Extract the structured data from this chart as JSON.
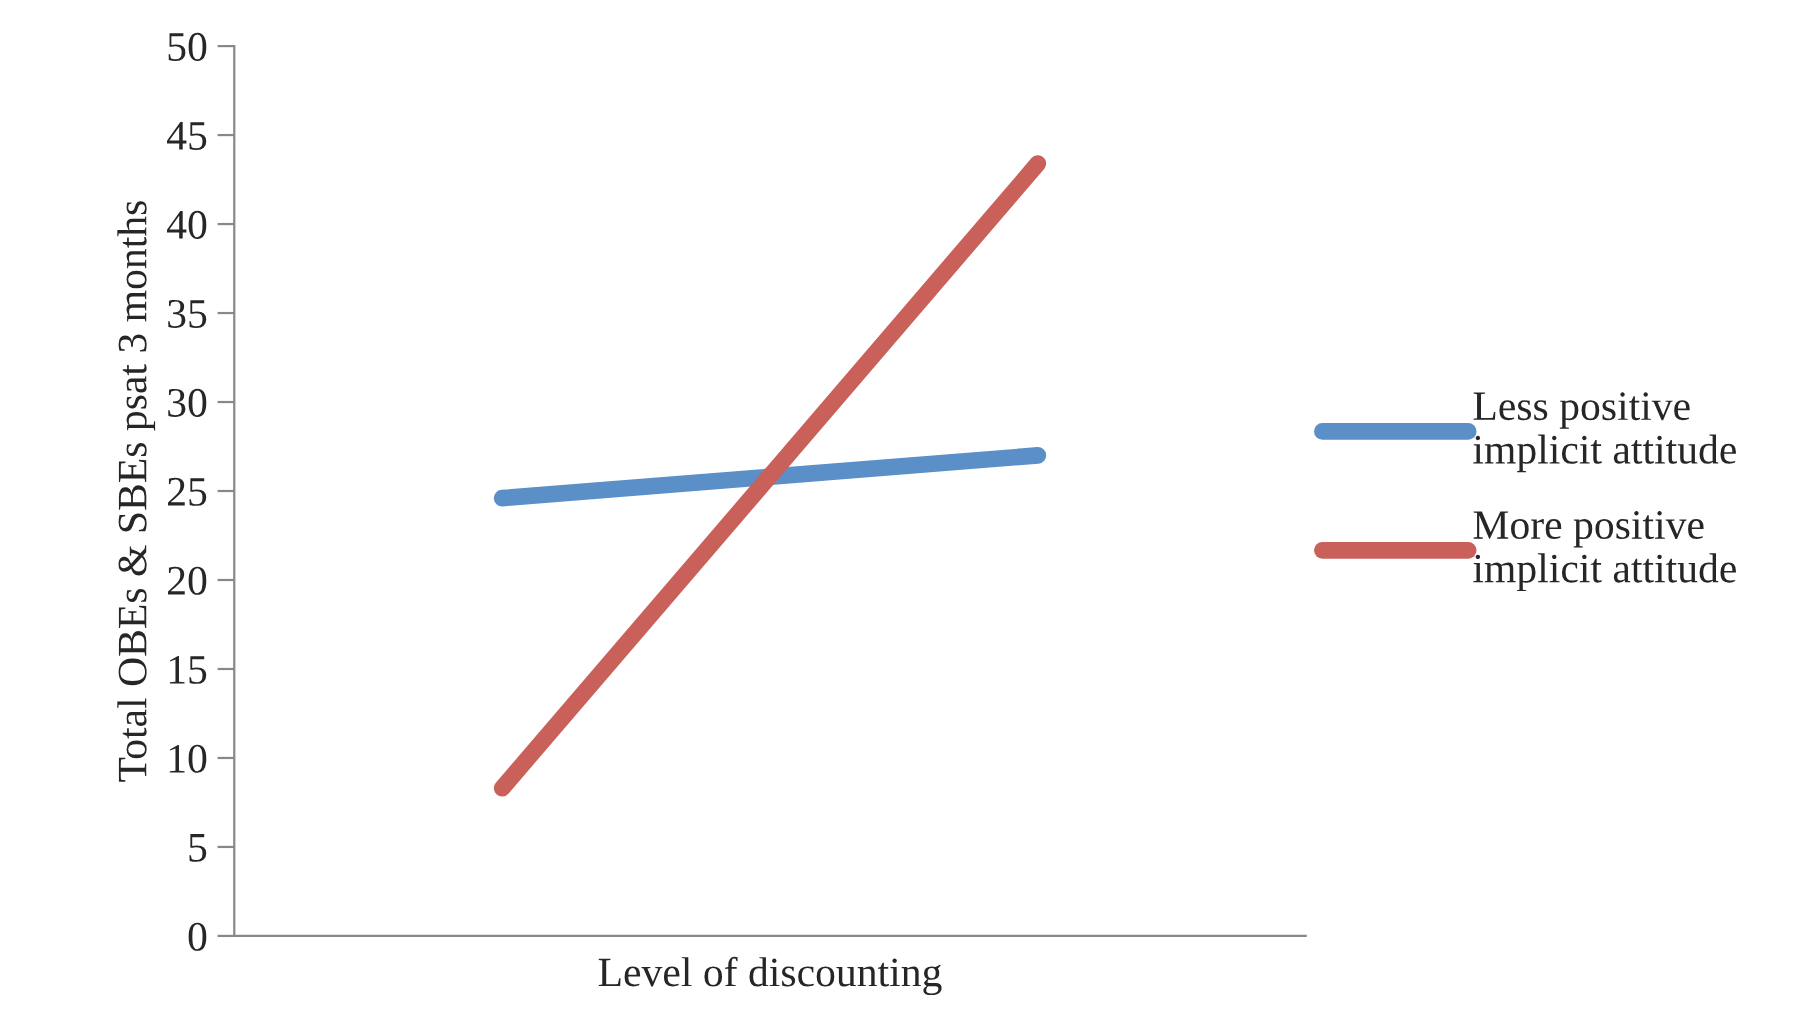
{
  "chart_data": {
    "type": "line",
    "xlabel": "Level of discounting",
    "ylabel": "Total OBEs & SBEs psat 3 months",
    "categories": [
      null,
      null
    ],
    "series": [
      {
        "name": "Less positive\nimplicit attitude",
        "color": "#5b8fc7",
        "values": [
          24.6,
          27.0
        ]
      },
      {
        "name": "More positive\nimplicit attitude",
        "color": "#c9605a",
        "values": [
          8.3,
          43.4
        ]
      }
    ],
    "ylim": [
      0,
      50
    ],
    "yticks": [
      0,
      5,
      10,
      15,
      20,
      25,
      30,
      35,
      40,
      45,
      50
    ],
    "grid": false,
    "legend": "right",
    "marker": "none",
    "line_style": "solid"
  }
}
